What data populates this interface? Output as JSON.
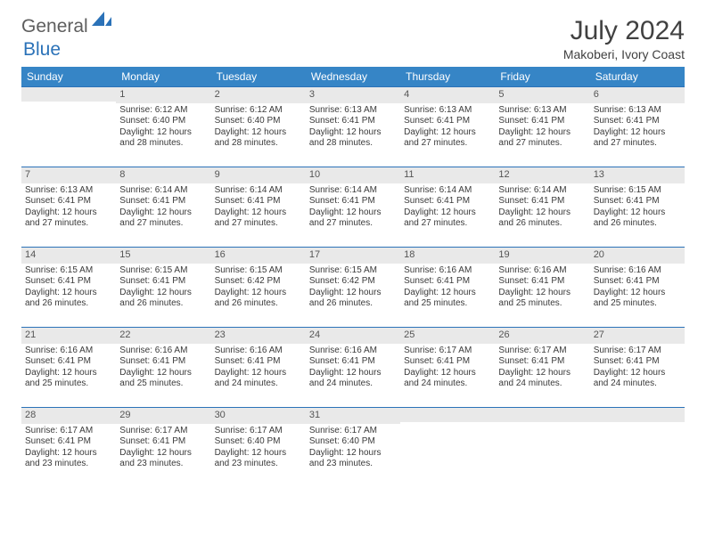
{
  "logo": {
    "text1": "General",
    "text2": "Blue"
  },
  "title": "July 2024",
  "subtitle": "Makoberi, Ivory Coast",
  "headers": [
    "Sunday",
    "Monday",
    "Tuesday",
    "Wednesday",
    "Thursday",
    "Friday",
    "Saturday"
  ],
  "colors": {
    "header_bg": "#3685c6",
    "header_text": "#ffffff",
    "daynum_bg": "#e9e9e9",
    "border": "#2b72b8",
    "text": "#3a3a3a",
    "logo_gray": "#5e5e5e",
    "logo_blue": "#2b72b8",
    "bg": "#ffffff"
  },
  "weeks": [
    [
      {
        "num": "",
        "sunrise": "",
        "sunset": "",
        "daylight": ""
      },
      {
        "num": "1",
        "sunrise": "Sunrise: 6:12 AM",
        "sunset": "Sunset: 6:40 PM",
        "daylight": "Daylight: 12 hours and 28 minutes."
      },
      {
        "num": "2",
        "sunrise": "Sunrise: 6:12 AM",
        "sunset": "Sunset: 6:40 PM",
        "daylight": "Daylight: 12 hours and 28 minutes."
      },
      {
        "num": "3",
        "sunrise": "Sunrise: 6:13 AM",
        "sunset": "Sunset: 6:41 PM",
        "daylight": "Daylight: 12 hours and 28 minutes."
      },
      {
        "num": "4",
        "sunrise": "Sunrise: 6:13 AM",
        "sunset": "Sunset: 6:41 PM",
        "daylight": "Daylight: 12 hours and 27 minutes."
      },
      {
        "num": "5",
        "sunrise": "Sunrise: 6:13 AM",
        "sunset": "Sunset: 6:41 PM",
        "daylight": "Daylight: 12 hours and 27 minutes."
      },
      {
        "num": "6",
        "sunrise": "Sunrise: 6:13 AM",
        "sunset": "Sunset: 6:41 PM",
        "daylight": "Daylight: 12 hours and 27 minutes."
      }
    ],
    [
      {
        "num": "7",
        "sunrise": "Sunrise: 6:13 AM",
        "sunset": "Sunset: 6:41 PM",
        "daylight": "Daylight: 12 hours and 27 minutes."
      },
      {
        "num": "8",
        "sunrise": "Sunrise: 6:14 AM",
        "sunset": "Sunset: 6:41 PM",
        "daylight": "Daylight: 12 hours and 27 minutes."
      },
      {
        "num": "9",
        "sunrise": "Sunrise: 6:14 AM",
        "sunset": "Sunset: 6:41 PM",
        "daylight": "Daylight: 12 hours and 27 minutes."
      },
      {
        "num": "10",
        "sunrise": "Sunrise: 6:14 AM",
        "sunset": "Sunset: 6:41 PM",
        "daylight": "Daylight: 12 hours and 27 minutes."
      },
      {
        "num": "11",
        "sunrise": "Sunrise: 6:14 AM",
        "sunset": "Sunset: 6:41 PM",
        "daylight": "Daylight: 12 hours and 27 minutes."
      },
      {
        "num": "12",
        "sunrise": "Sunrise: 6:14 AM",
        "sunset": "Sunset: 6:41 PM",
        "daylight": "Daylight: 12 hours and 26 minutes."
      },
      {
        "num": "13",
        "sunrise": "Sunrise: 6:15 AM",
        "sunset": "Sunset: 6:41 PM",
        "daylight": "Daylight: 12 hours and 26 minutes."
      }
    ],
    [
      {
        "num": "14",
        "sunrise": "Sunrise: 6:15 AM",
        "sunset": "Sunset: 6:41 PM",
        "daylight": "Daylight: 12 hours and 26 minutes."
      },
      {
        "num": "15",
        "sunrise": "Sunrise: 6:15 AM",
        "sunset": "Sunset: 6:41 PM",
        "daylight": "Daylight: 12 hours and 26 minutes."
      },
      {
        "num": "16",
        "sunrise": "Sunrise: 6:15 AM",
        "sunset": "Sunset: 6:42 PM",
        "daylight": "Daylight: 12 hours and 26 minutes."
      },
      {
        "num": "17",
        "sunrise": "Sunrise: 6:15 AM",
        "sunset": "Sunset: 6:42 PM",
        "daylight": "Daylight: 12 hours and 26 minutes."
      },
      {
        "num": "18",
        "sunrise": "Sunrise: 6:16 AM",
        "sunset": "Sunset: 6:41 PM",
        "daylight": "Daylight: 12 hours and 25 minutes."
      },
      {
        "num": "19",
        "sunrise": "Sunrise: 6:16 AM",
        "sunset": "Sunset: 6:41 PM",
        "daylight": "Daylight: 12 hours and 25 minutes."
      },
      {
        "num": "20",
        "sunrise": "Sunrise: 6:16 AM",
        "sunset": "Sunset: 6:41 PM",
        "daylight": "Daylight: 12 hours and 25 minutes."
      }
    ],
    [
      {
        "num": "21",
        "sunrise": "Sunrise: 6:16 AM",
        "sunset": "Sunset: 6:41 PM",
        "daylight": "Daylight: 12 hours and 25 minutes."
      },
      {
        "num": "22",
        "sunrise": "Sunrise: 6:16 AM",
        "sunset": "Sunset: 6:41 PM",
        "daylight": "Daylight: 12 hours and 25 minutes."
      },
      {
        "num": "23",
        "sunrise": "Sunrise: 6:16 AM",
        "sunset": "Sunset: 6:41 PM",
        "daylight": "Daylight: 12 hours and 24 minutes."
      },
      {
        "num": "24",
        "sunrise": "Sunrise: 6:16 AM",
        "sunset": "Sunset: 6:41 PM",
        "daylight": "Daylight: 12 hours and 24 minutes."
      },
      {
        "num": "25",
        "sunrise": "Sunrise: 6:17 AM",
        "sunset": "Sunset: 6:41 PM",
        "daylight": "Daylight: 12 hours and 24 minutes."
      },
      {
        "num": "26",
        "sunrise": "Sunrise: 6:17 AM",
        "sunset": "Sunset: 6:41 PM",
        "daylight": "Daylight: 12 hours and 24 minutes."
      },
      {
        "num": "27",
        "sunrise": "Sunrise: 6:17 AM",
        "sunset": "Sunset: 6:41 PM",
        "daylight": "Daylight: 12 hours and 24 minutes."
      }
    ],
    [
      {
        "num": "28",
        "sunrise": "Sunrise: 6:17 AM",
        "sunset": "Sunset: 6:41 PM",
        "daylight": "Daylight: 12 hours and 23 minutes."
      },
      {
        "num": "29",
        "sunrise": "Sunrise: 6:17 AM",
        "sunset": "Sunset: 6:41 PM",
        "daylight": "Daylight: 12 hours and 23 minutes."
      },
      {
        "num": "30",
        "sunrise": "Sunrise: 6:17 AM",
        "sunset": "Sunset: 6:40 PM",
        "daylight": "Daylight: 12 hours and 23 minutes."
      },
      {
        "num": "31",
        "sunrise": "Sunrise: 6:17 AM",
        "sunset": "Sunset: 6:40 PM",
        "daylight": "Daylight: 12 hours and 23 minutes."
      },
      {
        "num": "",
        "sunrise": "",
        "sunset": "",
        "daylight": ""
      },
      {
        "num": "",
        "sunrise": "",
        "sunset": "",
        "daylight": ""
      },
      {
        "num": "",
        "sunrise": "",
        "sunset": "",
        "daylight": ""
      }
    ]
  ]
}
